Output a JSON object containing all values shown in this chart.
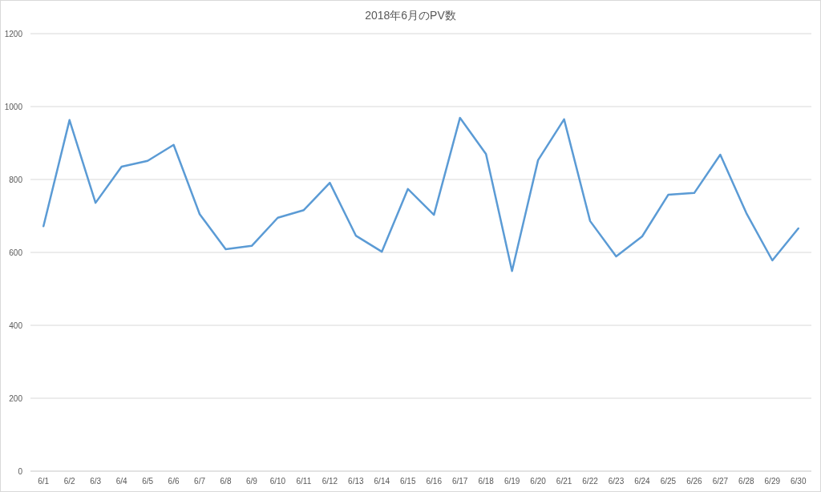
{
  "chart_data": {
    "type": "line",
    "title": "2018年6月のPV数",
    "categories": [
      "6/1",
      "6/2",
      "6/3",
      "6/4",
      "6/5",
      "6/6",
      "6/7",
      "6/8",
      "6/9",
      "6/10",
      "6/11",
      "6/12",
      "6/13",
      "6/14",
      "6/15",
      "6/16",
      "6/17",
      "6/18",
      "6/19",
      "6/20",
      "6/21",
      "6/22",
      "6/23",
      "6/24",
      "6/25",
      "6/26",
      "6/27",
      "6/28",
      "6/29",
      "6/30"
    ],
    "series": [
      {
        "color": "#5b9bd5",
        "values": [
          672,
          963,
          736,
          835,
          851,
          895,
          705,
          609,
          618,
          695,
          716,
          791,
          646,
          602,
          774,
          703,
          969,
          870,
          549,
          853,
          965,
          686,
          589,
          644,
          758,
          763,
          868,
          708,
          578,
          666
        ]
      }
    ],
    "ylim": [
      0,
      1200
    ],
    "yticks": [
      0,
      200,
      400,
      600,
      800,
      1000,
      1200
    ],
    "grid": "y",
    "marker": "none",
    "line_style": "solid"
  }
}
